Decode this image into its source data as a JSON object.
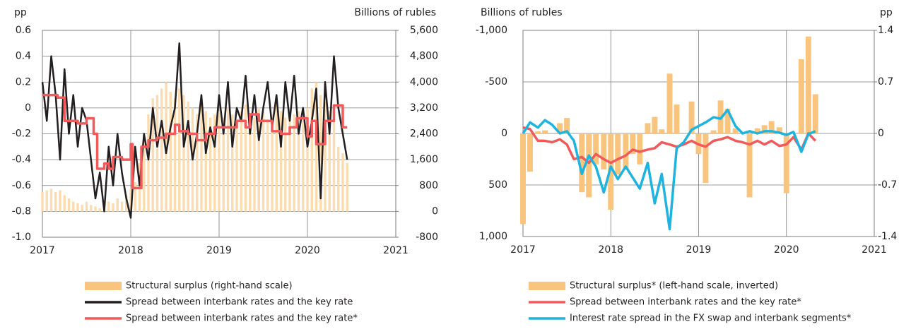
{
  "chart_data": [
    {
      "type": "combo",
      "ylabel": "pp",
      "y2label": "Billions of rubles",
      "xlim": [
        2017,
        2021
      ],
      "xticks": [
        2017,
        2018,
        2019,
        2020,
        2021
      ],
      "ylim": [
        -1,
        0.6
      ],
      "yticks": [
        0.6,
        0.4,
        0.2,
        0,
        -0.2,
        -0.4,
        -0.6,
        -0.8,
        {
          "value": -1,
          "label": "-1.0"
        }
      ],
      "y2lim": [
        -800,
        5600
      ],
      "y2ticks": [
        {
          "value": 5600,
          "label": "5,600"
        },
        {
          "value": 4800,
          "label": "4,800"
        },
        {
          "value": 4000,
          "label": "4,000"
        },
        {
          "value": 3200,
          "label": "3,200"
        },
        {
          "value": 2400,
          "label": "2,400"
        },
        {
          "value": 1600,
          "label": "1,600"
        },
        800,
        0,
        -800
      ],
      "grid": true,
      "x": [
        2017.0,
        2017.05,
        2017.1,
        2017.15,
        2017.2,
        2017.25,
        2017.3,
        2017.35,
        2017.4,
        2017.45,
        2017.5,
        2017.55,
        2017.6,
        2017.65,
        2017.7,
        2017.75,
        2017.8,
        2017.85,
        2017.9,
        2017.95,
        2018.0,
        2018.05,
        2018.1,
        2018.15,
        2018.2,
        2018.25,
        2018.3,
        2018.35,
        2018.4,
        2018.45,
        2018.5,
        2018.55,
        2018.6,
        2018.65,
        2018.7,
        2018.75,
        2018.8,
        2018.85,
        2018.9,
        2018.95,
        2019.0,
        2019.05,
        2019.1,
        2019.15,
        2019.2,
        2019.25,
        2019.3,
        2019.35,
        2019.4,
        2019.45,
        2019.5,
        2019.55,
        2019.6,
        2019.65,
        2019.7,
        2019.75,
        2019.8,
        2019.85,
        2019.9,
        2019.95,
        2020.0,
        2020.05,
        2020.1,
        2020.15,
        2020.2,
        2020.25,
        2020.3,
        2020.35,
        2020.4,
        2020.45
      ],
      "series": [
        {
          "name": "Structural surplus (right-hand scale)",
          "type": "bar",
          "axis": "y2",
          "color": "#fbdcb0",
          "legend_color": "#f9c57e",
          "values": [
            600,
            650,
            700,
            600,
            650,
            500,
            400,
            300,
            250,
            200,
            300,
            200,
            150,
            100,
            200,
            300,
            250,
            400,
            300,
            500,
            700,
            900,
            1500,
            2200,
            3000,
            3500,
            3600,
            3800,
            4000,
            3700,
            3500,
            3800,
            3600,
            3400,
            3200,
            3000,
            3300,
            3100,
            2900,
            3000,
            3100,
            2900,
            3200,
            3000,
            2800,
            3100,
            3300,
            3000,
            2900,
            3200,
            3100,
            2800,
            3000,
            3300,
            3100,
            2900,
            3200,
            3000,
            3100,
            2800,
            3200,
            3800,
            4000,
            3600,
            3400,
            3100,
            2800,
            2000,
            1800,
            1500
          ]
        },
        {
          "name": "Spread between interbank rates and the key rate",
          "type": "line",
          "color": "#231f20",
          "values": [
            0.2,
            -0.1,
            0.4,
            0.1,
            -0.4,
            0.3,
            -0.2,
            0.1,
            -0.3,
            0.0,
            -0.1,
            -0.4,
            -0.7,
            -0.5,
            -0.8,
            -0.3,
            -0.6,
            -0.2,
            -0.5,
            -0.7,
            -0.85,
            -0.3,
            -0.6,
            -0.2,
            -0.4,
            0.0,
            -0.3,
            -0.1,
            -0.35,
            -0.15,
            0.0,
            0.5,
            -0.3,
            -0.1,
            -0.4,
            -0.2,
            0.1,
            -0.35,
            -0.15,
            -0.3,
            0.1,
            -0.2,
            0.2,
            -0.3,
            0.0,
            -0.1,
            0.25,
            -0.2,
            0.1,
            -0.25,
            0.0,
            0.2,
            -0.15,
            0.1,
            -0.3,
            0.2,
            -0.1,
            0.25,
            -0.2,
            0.0,
            -0.3,
            -0.1,
            0.15,
            -0.7,
            0.2,
            -0.2,
            0.4,
            0.0,
            -0.2,
            -0.4
          ]
        },
        {
          "name": "Spread between interbank rates and the key rate*",
          "type": "line",
          "step": true,
          "color": "#f05a5a",
          "x": [
            2017.0,
            2017.17,
            2017.25,
            2017.4,
            2017.5,
            2017.58,
            2017.62,
            2017.7,
            2017.75,
            2017.8,
            2017.9,
            2018.0,
            2018.02,
            2018.12,
            2018.2,
            2018.3,
            2018.4,
            2018.5,
            2018.55,
            2018.65,
            2018.75,
            2018.85,
            2018.95,
            2019.1,
            2019.2,
            2019.3,
            2019.35,
            2019.45,
            2019.6,
            2019.7,
            2019.8,
            2019.88,
            2020.0,
            2020.05,
            2020.1,
            2020.2,
            2020.3,
            2020.4,
            2020.45
          ],
          "values": [
            0.1,
            0.08,
            -0.1,
            -0.12,
            -0.08,
            -0.2,
            -0.47,
            -0.43,
            -0.47,
            -0.38,
            -0.4,
            -0.28,
            -0.62,
            -0.3,
            -0.25,
            -0.23,
            -0.2,
            -0.13,
            -0.18,
            -0.2,
            -0.25,
            -0.2,
            -0.15,
            -0.15,
            -0.1,
            -0.15,
            -0.05,
            -0.1,
            -0.18,
            -0.2,
            -0.15,
            -0.08,
            -0.22,
            -0.1,
            -0.28,
            -0.1,
            0.02,
            -0.15,
            -0.15
          ]
        }
      ]
    },
    {
      "type": "combo",
      "ylabel": "Billions of rubles",
      "y2label": "pp",
      "xlim": [
        2017,
        2021
      ],
      "xticks": [
        2017,
        2018,
        2019,
        2020,
        2021
      ],
      "ylim": [
        -1000,
        1000
      ],
      "y_inverted": true,
      "yticks": [
        {
          "value": -1000,
          "label": "-1,000"
        },
        -500,
        0,
        500,
        {
          "value": 1000,
          "label": "1,000"
        }
      ],
      "y2lim": [
        -1.4,
        1.4
      ],
      "y2ticks": [
        1.4,
        0.7,
        0,
        -0.7,
        -1.4
      ],
      "grid": true,
      "x": [
        2017.0,
        2017.08,
        2017.17,
        2017.25,
        2017.33,
        2017.42,
        2017.5,
        2017.58,
        2017.67,
        2017.75,
        2017.83,
        2017.92,
        2018.0,
        2018.08,
        2018.17,
        2018.25,
        2018.33,
        2018.42,
        2018.5,
        2018.58,
        2018.67,
        2018.75,
        2018.83,
        2018.92,
        2019.0,
        2019.08,
        2019.17,
        2019.25,
        2019.33,
        2019.42,
        2019.5,
        2019.58,
        2019.67,
        2019.75,
        2019.83,
        2019.92,
        2020.0,
        2020.08,
        2020.17,
        2020.25,
        2020.33
      ],
      "series": [
        {
          "name": "Structural surplus* (left-hand scale, inverted)",
          "type": "bar",
          "color": "#f9c57e",
          "values": [
            880,
            370,
            -20,
            -30,
            0,
            -100,
            -150,
            0,
            570,
            620,
            300,
            350,
            740,
            400,
            350,
            200,
            300,
            -100,
            -160,
            -40,
            -580,
            -280,
            0,
            -310,
            200,
            480,
            -30,
            -320,
            -240,
            -50,
            0,
            620,
            -50,
            -80,
            -120,
            -60,
            580,
            0,
            -720,
            -940,
            -380
          ]
        },
        {
          "name": "Spread between interbank rates and the key rate*",
          "type": "line",
          "axis": "y2",
          "color": "#f05a5a",
          "values": [
            0.08,
            0.06,
            -0.1,
            -0.1,
            -0.12,
            -0.08,
            -0.15,
            -0.35,
            -0.32,
            -0.4,
            -0.28,
            -0.35,
            -0.4,
            -0.35,
            -0.3,
            -0.22,
            -0.25,
            -0.22,
            -0.2,
            -0.12,
            -0.15,
            -0.18,
            -0.15,
            -0.1,
            -0.15,
            -0.18,
            -0.1,
            -0.08,
            -0.05,
            -0.1,
            -0.12,
            -0.15,
            -0.1,
            -0.15,
            -0.1,
            -0.17,
            -0.15,
            -0.05,
            -0.22,
            0.0,
            -0.1
          ]
        },
        {
          "name": "Interest rate spread in the FX swap and interbank segments*",
          "type": "line",
          "axis": "y2",
          "color": "#1fb4e0",
          "values": [
            0.0,
            0.15,
            0.08,
            0.18,
            0.12,
            0.0,
            0.03,
            -0.1,
            -0.55,
            -0.3,
            -0.45,
            -0.8,
            -0.45,
            -0.62,
            -0.45,
            -0.6,
            -0.75,
            -0.4,
            -0.95,
            -0.55,
            -1.3,
            -0.2,
            -0.12,
            0.05,
            0.1,
            0.15,
            0.22,
            0.2,
            0.32,
            0.1,
            0.0,
            0.03,
            0.0,
            0.03,
            0.03,
            0.01,
            -0.02,
            0.02,
            -0.25,
            -0.01,
            0.03
          ]
        }
      ]
    }
  ]
}
